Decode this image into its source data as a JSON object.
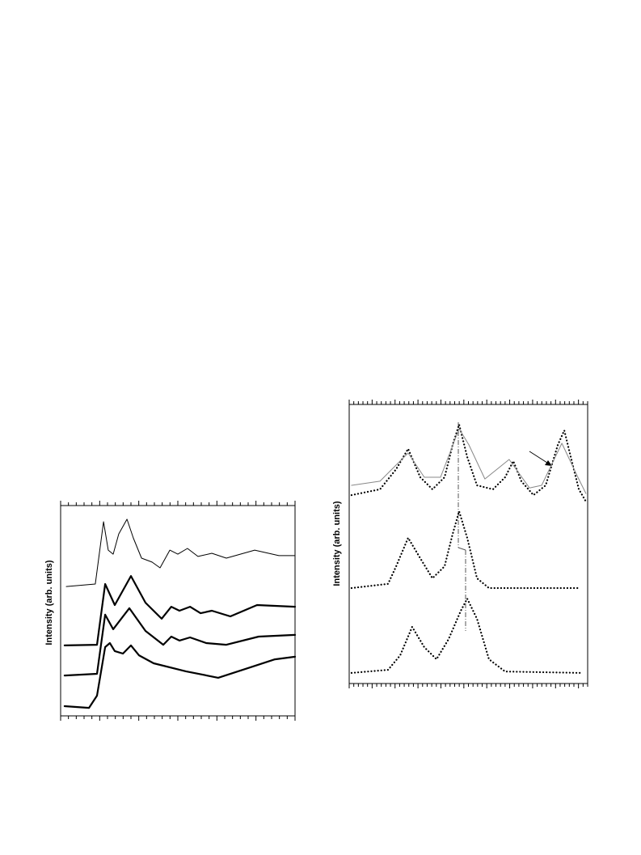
{
  "chart_data": [
    {
      "type": "line",
      "y_label": "Intensity (arb. units)",
      "xlim": [
        0,
        100
      ],
      "ylim": [
        0,
        100
      ],
      "series": [
        {
          "color": "#000000",
          "line_width": 1,
          "x": [
            2.4,
            14.8,
            18.3,
            20.3,
            22.4,
            24.8,
            28.3,
            31.0,
            34.5,
            39.0,
            42.4,
            46.6,
            50.0,
            54.1,
            58.6,
            64.5,
            70.7,
            82.8,
            93.1,
            100
          ],
          "values": [
            61.5,
            62.7,
            92.3,
            78.8,
            76.9,
            86.5,
            93.5,
            84.6,
            75.0,
            73.1,
            70.4,
            78.8,
            76.9,
            79.6,
            75.8,
            77.3,
            75.0,
            78.8,
            76.2,
            76.2
          ]
        },
        {
          "color": "#000000",
          "line_width": 2.2,
          "x": [
            1.7,
            15.5,
            19.0,
            23.1,
            30.0,
            36.2,
            43.1,
            47.2,
            50.7,
            55.2,
            59.7,
            64.5,
            72.4,
            83.8,
            100
          ],
          "values": [
            33.5,
            33.8,
            62.7,
            52.7,
            66.5,
            53.8,
            46.2,
            51.9,
            50.0,
            51.9,
            48.8,
            50.0,
            47.3,
            52.7,
            51.9
          ]
        },
        {
          "color": "#000000",
          "line_width": 2.2,
          "x": [
            1.7,
            15.5,
            19.0,
            22.4,
            29.3,
            36.2,
            43.8,
            47.2,
            50.7,
            55.2,
            62.1,
            70.7,
            84.5,
            100
          ],
          "values": [
            19.2,
            20.0,
            48.1,
            41.2,
            51.2,
            40.4,
            33.8,
            37.7,
            35.8,
            37.3,
            34.6,
            33.8,
            37.7,
            38.5
          ]
        },
        {
          "color": "#000000",
          "line_width": 2.2,
          "x": [
            1.7,
            12.1,
            15.5,
            19.0,
            21.0,
            23.1,
            26.6,
            30.0,
            33.4,
            39.7,
            53.4,
            67.2,
            81.0,
            91.4,
            100
          ],
          "values": [
            4.6,
            3.8,
            9.6,
            32.7,
            34.6,
            30.8,
            29.6,
            33.5,
            28.8,
            25.0,
            21.2,
            18.1,
            23.1,
            26.9,
            28.1
          ]
        }
      ]
    },
    {
      "type": "line",
      "y_label": "Intensity (arb. units)",
      "xlim": [
        0,
        100
      ],
      "ylim": [
        0,
        100
      ],
      "series": [
        {
          "color": "#000000",
          "line_width": 2.2,
          "style": "dots",
          "x": [
            1.0,
            12.9,
            19.7,
            24.7,
            29.8,
            34.9,
            40.0,
            43.4,
            46.1,
            49.5,
            53.6,
            60.3,
            65.4,
            68.8,
            72.2,
            77.3,
            82.4,
            87.5,
            90.2,
            92.9,
            96.3,
            99.3
          ],
          "values": [
            67.5,
            69.6,
            76.8,
            84.1,
            73.9,
            69.6,
            73.9,
            85.5,
            92.8,
            81.2,
            71.0,
            69.6,
            73.9,
            79.7,
            72.5,
            67.5,
            71.0,
            85.5,
            90.7,
            81.2,
            69.6,
            65.2
          ]
        },
        {
          "color": "#888888",
          "line_width": 1,
          "x": [
            1.0,
            12.9,
            24.7,
            31.5,
            38.3,
            46.1,
            50.2,
            56.9,
            67.1,
            75.6,
            80.7,
            89.2,
            95.9,
            99.3
          ],
          "values": [
            71.0,
            72.5,
            82.6,
            73.9,
            73.9,
            91.3,
            85.5,
            73.3,
            80.3,
            70.1,
            71.0,
            86.1,
            73.9,
            68.1
          ]
        },
        {
          "color": "#000000",
          "line_width": 2.2,
          "style": "dots",
          "x": [
            1.0,
            16.3,
            19.7,
            24.7,
            29.8,
            34.9,
            40.0,
            43.4,
            46.1,
            49.5,
            53.6,
            58.6,
            96.9
          ],
          "values": [
            34.2,
            35.7,
            42.0,
            52.2,
            44.9,
            37.7,
            42.0,
            53.6,
            61.7,
            52.2,
            37.7,
            34.2,
            34.2
          ]
        },
        {
          "color": "#000000",
          "line_width": 2.2,
          "style": "dots",
          "x": [
            1.0,
            16.3,
            21.4,
            26.4,
            31.5,
            36.6,
            41.7,
            46.8,
            49.5,
            53.6,
            58.6,
            65.4,
            96.9
          ],
          "values": [
            3.8,
            4.9,
            10.1,
            20.3,
            13.0,
            8.7,
            15.9,
            26.1,
            30.4,
            23.2,
            8.7,
            4.3,
            3.8
          ]
        }
      ]
    }
  ]
}
